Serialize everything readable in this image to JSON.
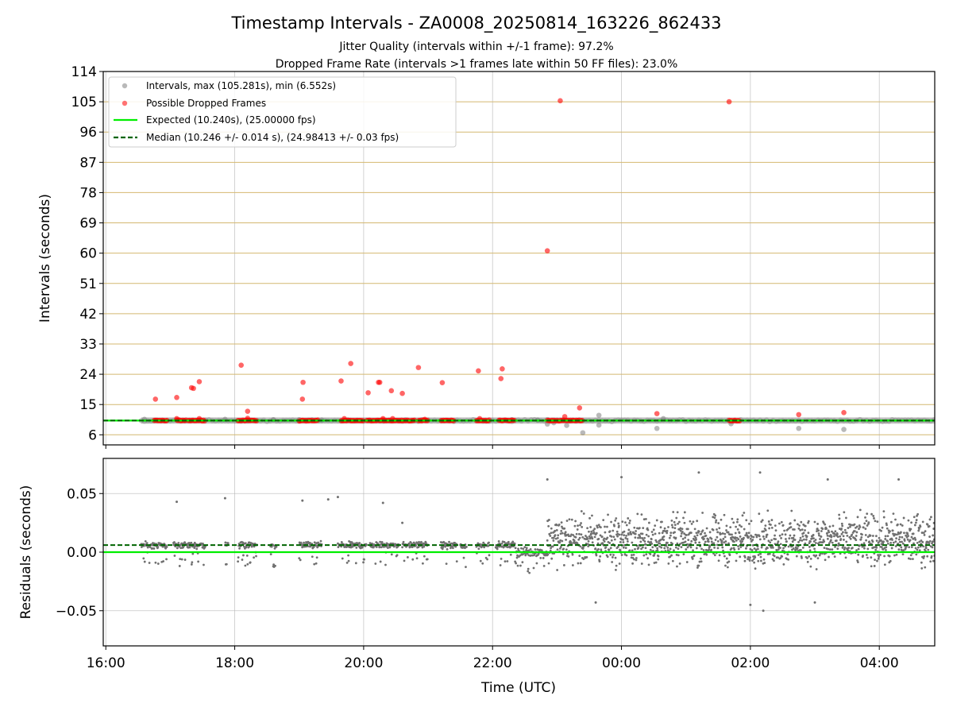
{
  "figure": {
    "title": "Timestamp Intervals - ZA0008_20250814_163226_862433",
    "subtitle_1": "Jitter Quality (intervals within +/-1 frame): 97.2%",
    "subtitle_2": "Dropped Frame Rate (intervals >1 frames late within 50 FF files): 23.0%"
  },
  "colors": {
    "intervals": "#808080",
    "dropped": "#ff0000",
    "expected": "#00ee00",
    "median": "#006400",
    "hgrid_top": "#d4b870",
    "grid": "#b0b0b0",
    "residual_points": "#707070"
  },
  "chart_data": [
    {
      "type": "scatter",
      "ylabel": "Intervals (seconds)",
      "x_domain_hours": [
        15.96,
        28.86
      ],
      "ylim": [
        3,
        114
      ],
      "yticks": [
        6,
        15,
        24,
        33,
        42,
        51,
        60,
        69,
        78,
        87,
        96,
        105,
        114
      ],
      "grid": "on",
      "legend_placement": "top-left",
      "legend": [
        "Intervals, max (105.281s), min (6.552s)",
        "Possible Dropped Frames",
        "Expected (10.240s), (25.00000 fps)",
        "Median (10.246 +/- 0.014 s), (24.98413 +/- 0.03 fps)"
      ],
      "expected_line_y": 10.24,
      "median_line_y": 10.246,
      "series": [
        {
          "name": "Intervals, max (105.281s), min (6.552s)",
          "band": {
            "x_range": [
              16.55,
              28.86
            ],
            "y": 10.24
          },
          "points": [
            {
              "x": 16.6,
              "y": 10.6
            },
            {
              "x": 17.85,
              "y": 10.6
            },
            {
              "x": 18.6,
              "y": 10.5
            },
            {
              "x": 19.0,
              "y": 10.5
            },
            {
              "x": 19.35,
              "y": 10.4
            },
            {
              "x": 22.3,
              "y": 10.5
            },
            {
              "x": 22.7,
              "y": 10.4
            },
            {
              "x": 22.85,
              "y": 9.2
            },
            {
              "x": 22.95,
              "y": 9.6
            },
            {
              "x": 23.15,
              "y": 8.8
            },
            {
              "x": 23.4,
              "y": 6.6
            },
            {
              "x": 23.65,
              "y": 11.8
            },
            {
              "x": 23.65,
              "y": 8.9
            },
            {
              "x": 24.55,
              "y": 7.9
            },
            {
              "x": 24.65,
              "y": 10.8
            },
            {
              "x": 25.7,
              "y": 9.3
            },
            {
              "x": 26.75,
              "y": 7.9
            },
            {
              "x": 27.45,
              "y": 7.6
            }
          ]
        },
        {
          "name": "Possible Dropped Frames",
          "points": [
            {
              "x": 16.77,
              "y": 16.6
            },
            {
              "x": 17.1,
              "y": 17.1
            },
            {
              "x": 17.33,
              "y": 20.0
            },
            {
              "x": 17.36,
              "y": 19.8
            },
            {
              "x": 17.45,
              "y": 21.8
            },
            {
              "x": 18.1,
              "y": 26.7
            },
            {
              "x": 18.2,
              "y": 13.0
            },
            {
              "x": 19.05,
              "y": 16.6
            },
            {
              "x": 19.06,
              "y": 21.6
            },
            {
              "x": 19.65,
              "y": 22.0
            },
            {
              "x": 19.8,
              "y": 27.2
            },
            {
              "x": 20.07,
              "y": 18.5
            },
            {
              "x": 20.23,
              "y": 21.6
            },
            {
              "x": 20.25,
              "y": 21.6
            },
            {
              "x": 20.43,
              "y": 19.1
            },
            {
              "x": 20.6,
              "y": 18.3
            },
            {
              "x": 20.85,
              "y": 26.0
            },
            {
              "x": 21.22,
              "y": 21.5
            },
            {
              "x": 21.78,
              "y": 25.0
            },
            {
              "x": 22.13,
              "y": 22.7
            },
            {
              "x": 22.15,
              "y": 25.6
            },
            {
              "x": 22.85,
              "y": 60.7
            },
            {
              "x": 23.05,
              "y": 105.3
            },
            {
              "x": 23.12,
              "y": 11.4
            },
            {
              "x": 23.35,
              "y": 14.0
            },
            {
              "x": 24.55,
              "y": 12.3
            },
            {
              "x": 25.67,
              "y": 105.0
            },
            {
              "x": 26.75,
              "y": 12.0
            },
            {
              "x": 27.45,
              "y": 12.6
            },
            {
              "x": 17.1,
              "y": 10.8
            },
            {
              "x": 17.45,
              "y": 10.8
            },
            {
              "x": 18.2,
              "y": 10.9
            },
            {
              "x": 19.7,
              "y": 10.8
            },
            {
              "x": 20.3,
              "y": 10.8
            },
            {
              "x": 20.45,
              "y": 10.8
            },
            {
              "x": 20.95,
              "y": 10.6
            },
            {
              "x": 21.8,
              "y": 10.8
            }
          ],
          "clusters": [
            {
              "x_range": [
                16.75,
                16.95
              ],
              "y": 10.24
            },
            {
              "x_range": [
                17.1,
                17.25
              ],
              "y": 10.24
            },
            {
              "x_range": [
                17.28,
                17.55
              ],
              "y": 10.24
            },
            {
              "x_range": [
                18.05,
                18.35
              ],
              "y": 10.24
            },
            {
              "x_range": [
                19.0,
                19.3
              ],
              "y": 10.24
            },
            {
              "x_range": [
                19.65,
                20.0
              ],
              "y": 10.24
            },
            {
              "x_range": [
                20.05,
                20.8
              ],
              "y": 10.24
            },
            {
              "x_range": [
                20.85,
                21.0
              ],
              "y": 10.24
            },
            {
              "x_range": [
                21.2,
                21.4
              ],
              "y": 10.24
            },
            {
              "x_range": [
                21.75,
                21.95
              ],
              "y": 10.24
            },
            {
              "x_range": [
                22.1,
                22.35
              ],
              "y": 10.24
            },
            {
              "x_range": [
                22.85,
                23.4
              ],
              "y": 10.24
            },
            {
              "x_range": [
                25.67,
                25.85
              ],
              "y": 10.24
            }
          ]
        }
      ]
    },
    {
      "type": "scatter",
      "ylabel": "Residuals (seconds)",
      "xlabel": "Time (UTC)",
      "x_domain_hours": [
        15.96,
        28.86
      ],
      "xticks_hours": [
        16,
        18,
        20,
        22,
        24,
        26,
        28
      ],
      "xtick_labels": [
        "16:00",
        "18:00",
        "20:00",
        "22:00",
        "00:00",
        "02:00",
        "04:00"
      ],
      "ylim": [
        -0.08,
        0.08
      ],
      "yticks": [
        -0.05,
        0.0,
        0.05
      ],
      "ytick_labels": [
        "−0.05",
        "0.00",
        "0.05"
      ],
      "grid": "on",
      "expected_line_y": 0.0,
      "median_line_y": 0.006,
      "series": [
        {
          "name": "",
          "x_range": [
            16.55,
            28.86
          ],
          "segments": [
            {
              "x_range": [
                16.55,
                16.95
              ],
              "center": 0.006,
              "spread": 0.004
            },
            {
              "x_range": [
                17.05,
                17.55
              ],
              "center": 0.006,
              "spread": 0.004
            },
            {
              "x_range": [
                17.85,
                17.9
              ],
              "center": 0.006,
              "spread": 0.003
            },
            {
              "x_range": [
                18.05,
                18.35
              ],
              "center": 0.006,
              "spread": 0.004
            },
            {
              "x_range": [
                18.55,
                18.65
              ],
              "center": 0.005,
              "spread": 0.003
            },
            {
              "x_range": [
                19.0,
                19.35
              ],
              "center": 0.006,
              "spread": 0.004
            },
            {
              "x_range": [
                19.6,
                20.05
              ],
              "center": 0.006,
              "spread": 0.004
            },
            {
              "x_range": [
                20.1,
                20.55
              ],
              "center": 0.006,
              "spread": 0.004
            },
            {
              "x_range": [
                20.6,
                21.0
              ],
              "center": 0.006,
              "spread": 0.004
            },
            {
              "x_range": [
                21.2,
                21.45
              ],
              "center": 0.006,
              "spread": 0.004
            },
            {
              "x_range": [
                21.5,
                21.6
              ],
              "center": 0.005,
              "spread": 0.003
            },
            {
              "x_range": [
                21.75,
                21.95
              ],
              "center": 0.006,
              "spread": 0.004
            },
            {
              "x_range": [
                22.05,
                22.35
              ],
              "center": 0.006,
              "spread": 0.004
            },
            {
              "x_range": [
                22.35,
                22.85
              ],
              "center": 0.0,
              "spread": 0.006
            },
            {
              "x_range": [
                22.85,
                28.86
              ],
              "center": 0.01,
              "spread": 0.03
            }
          ],
          "outliers": [
            {
              "x": 17.1,
              "y": 0.043
            },
            {
              "x": 17.85,
              "y": 0.046
            },
            {
              "x": 19.05,
              "y": 0.044
            },
            {
              "x": 19.45,
              "y": 0.045
            },
            {
              "x": 19.6,
              "y": 0.047
            },
            {
              "x": 20.3,
              "y": 0.042
            },
            {
              "x": 20.6,
              "y": 0.025
            },
            {
              "x": 22.85,
              "y": 0.062
            },
            {
              "x": 24.0,
              "y": 0.064
            },
            {
              "x": 25.2,
              "y": 0.068
            },
            {
              "x": 26.15,
              "y": 0.068
            },
            {
              "x": 27.2,
              "y": 0.062
            },
            {
              "x": 28.3,
              "y": 0.062
            },
            {
              "x": 26.2,
              "y": -0.05
            },
            {
              "x": 26.0,
              "y": -0.045
            },
            {
              "x": 27.0,
              "y": -0.043
            },
            {
              "x": 23.6,
              "y": -0.043
            }
          ]
        }
      ]
    }
  ]
}
